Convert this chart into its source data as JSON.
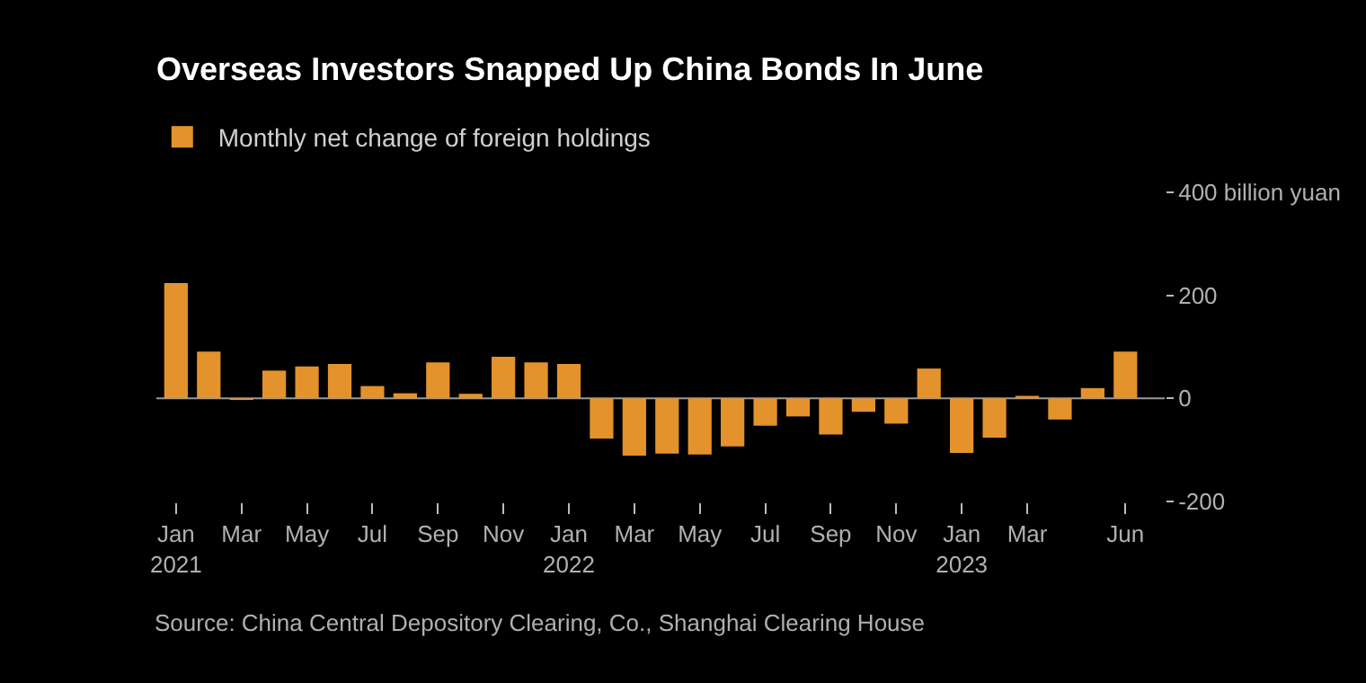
{
  "chart_data": {
    "type": "bar",
    "title": "Overseas Investors Snapped Up China Bonds In June",
    "categories": [
      "Jan\n2021",
      null,
      "Mar",
      null,
      "May",
      null,
      "Jul",
      null,
      "Sep",
      null,
      "Nov",
      null,
      "Jan\n2022",
      null,
      "Mar",
      null,
      "May",
      null,
      "Jul",
      null,
      "Sep",
      null,
      "Nov",
      null,
      "Jan\n2023",
      null,
      "Mar",
      null,
      null,
      "Jun"
    ],
    "series": [
      {
        "name": "Monthly net change of foreign holdings",
        "color": "#e3922c",
        "values": [
          224,
          91,
          -3,
          54,
          62,
          67,
          24,
          10,
          70,
          9,
          81,
          70,
          67,
          -78,
          -111,
          -107,
          -109,
          -93,
          -53,
          -35,
          -70,
          -26,
          -49,
          58,
          -106,
          -76,
          5,
          -41,
          20,
          91
        ]
      }
    ],
    "ylim": [
      -200,
      400
    ],
    "yticks": [
      {
        "value": 400,
        "label": "400 billion yuan"
      },
      200,
      0,
      -200
    ],
    "grid": false,
    "legend": "top left",
    "ref_lines": [
      {
        "axis": "y",
        "value": 0,
        "color": "#999999"
      }
    ],
    "annotations": [
      "Source: China Central Depository Clearing, Co., Shanghai Clearing House"
    ]
  }
}
